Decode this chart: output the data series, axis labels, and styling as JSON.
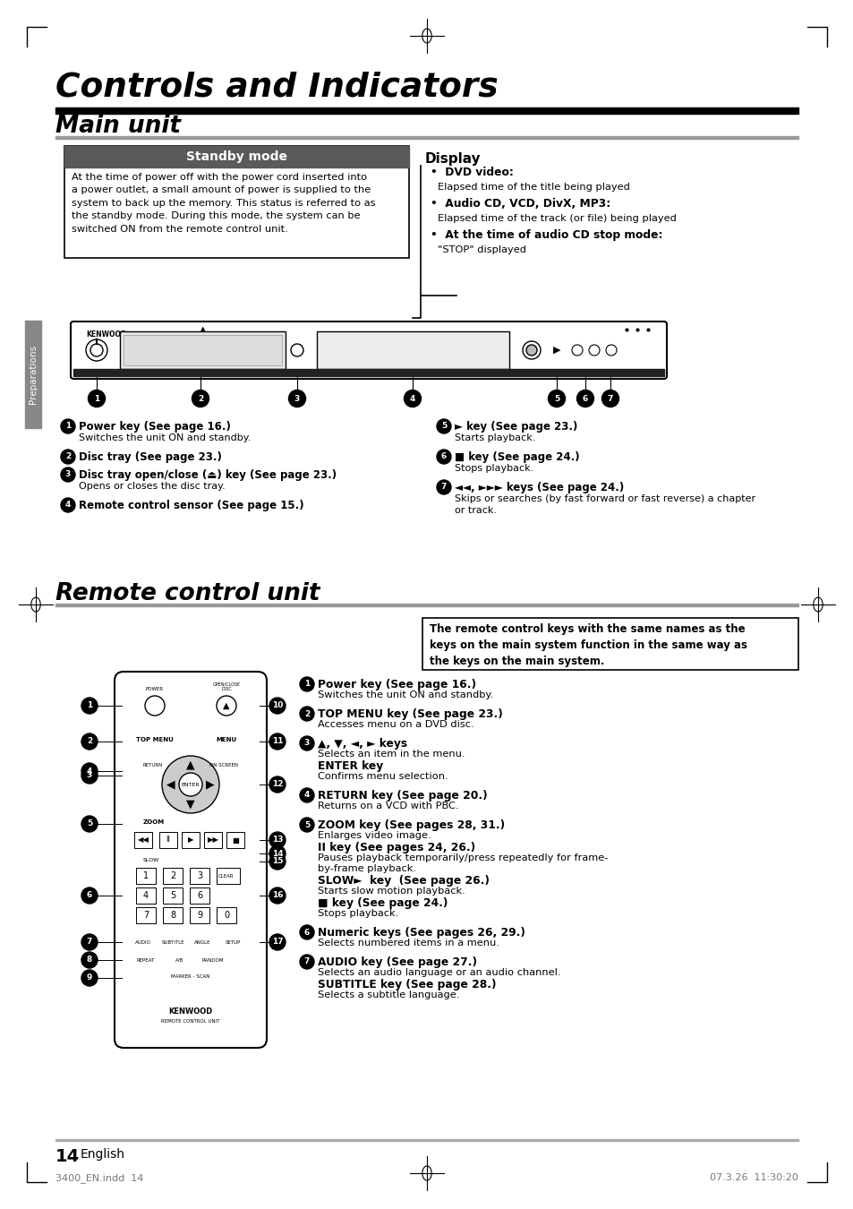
{
  "bg_color": "#ffffff",
  "title": "Controls and Indicators",
  "section1": "Main unit",
  "section2": "Remote control unit",
  "standby_title": "Standby mode",
  "standby_text": "At the time of power off with the power cord inserted into\na power outlet, a small amount of power is supplied to the\nsystem to back up the memory. This status is referred to as\nthe standby mode. During this mode, the system can be\nswitched ON from the remote control unit.",
  "display_title": "Display",
  "display_lines": [
    {
      "type": "bullet_bold",
      "text": "•  DVD video:"
    },
    {
      "type": "normal",
      "text": "Elapsed time of the title being played"
    },
    {
      "type": "bullet_bold",
      "text": "•  Audio CD, VCD, DivX, MP3:"
    },
    {
      "type": "normal",
      "text": "Elapsed time of the track (or file) being played"
    },
    {
      "type": "bullet_bold",
      "text": "•  At the time of audio CD stop mode:"
    },
    {
      "type": "normal",
      "text": "\"STOP\" displayed"
    }
  ],
  "main_labels_left": [
    {
      "num": "1",
      "bold": "Power key (See page 16.)",
      "text": "Switches the unit ON and standby."
    },
    {
      "num": "2",
      "bold": "Disc tray (See page 23.)",
      "text": ""
    },
    {
      "num": "3",
      "bold": "Disc tray open/close (⏏) key (See page 23.)",
      "text": "Opens or closes the disc tray."
    },
    {
      "num": "4",
      "bold": "Remote control sensor (See page 15.)",
      "text": ""
    }
  ],
  "main_labels_right": [
    {
      "num": "5",
      "bold": "► key (See page 23.)",
      "text": "Starts playback."
    },
    {
      "num": "6",
      "bold": "■ key (See page 24.)",
      "text": "Stops playback."
    },
    {
      "num": "7",
      "bold": "◄◄, ►►► keys (See page 24.)",
      "text": "Skips or searches (by fast forward or fast reverse) a chapter\nor track."
    }
  ],
  "remote_notice": "The remote control keys with the same names as the\nkeys on the main system function in the same way as\nthe keys on the main system.",
  "remote_labels": [
    {
      "num": "1",
      "lines": [
        {
          "bold": true,
          "text": "Power key (See page 16.)"
        },
        {
          "bold": false,
          "text": "Switches the unit ON and standby."
        }
      ]
    },
    {
      "num": "2",
      "lines": [
        {
          "bold": true,
          "text": "TOP MENU key (See page 23.)"
        },
        {
          "bold": false,
          "text": "Accesses menu on a DVD disc."
        }
      ]
    },
    {
      "num": "3",
      "lines": [
        {
          "bold": true,
          "text": "▲, ▼, ◄, ► keys"
        },
        {
          "bold": false,
          "text": "Selects an item in the menu."
        },
        {
          "bold": true,
          "text": "ENTER key"
        },
        {
          "bold": false,
          "text": "Confirms menu selection."
        }
      ]
    },
    {
      "num": "4",
      "lines": [
        {
          "bold": true,
          "text": "RETURN key (See page 20.)"
        },
        {
          "bold": false,
          "text": "Returns on a VCD with PBC."
        }
      ]
    },
    {
      "num": "5",
      "lines": [
        {
          "bold": true,
          "text": "ZOOM key (See pages 28, 31.)"
        },
        {
          "bold": false,
          "text": "Enlarges video image."
        },
        {
          "bold": true,
          "text": "II key (See pages 24, 26.)"
        },
        {
          "bold": false,
          "text": "Pauses playback temporarily/press repeatedly for frame-"
        },
        {
          "bold": false,
          "text": "by-frame playback."
        },
        {
          "bold": true,
          "text": "SLOW►  key  (See page 26.)"
        },
        {
          "bold": false,
          "text": "Starts slow motion playback."
        },
        {
          "bold": true,
          "text": "■ key (See page 24.)"
        },
        {
          "bold": false,
          "text": "Stops playback."
        }
      ]
    },
    {
      "num": "6",
      "lines": [
        {
          "bold": true,
          "text": "Numeric keys (See pages 26, 29.)"
        },
        {
          "bold": false,
          "text": "Selects numbered items in a menu."
        }
      ]
    },
    {
      "num": "7",
      "lines": [
        {
          "bold": true,
          "text": "AUDIO key (See page 27.)"
        },
        {
          "bold": false,
          "text": "Selects an audio language or an audio channel."
        },
        {
          "bold": true,
          "text": "SUBTITLE key (See page 28.)"
        },
        {
          "bold": false,
          "text": "Selects a subtitle language."
        }
      ]
    }
  ],
  "page_number": "14",
  "page_lang": "English",
  "footer_left": "3400_EN.indd  14",
  "footer_right": "07.3.26  11:30:20",
  "preparations_tab": "Preparations"
}
